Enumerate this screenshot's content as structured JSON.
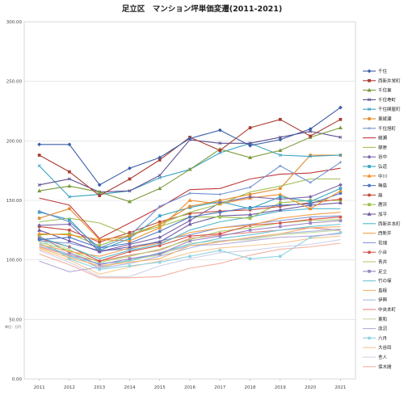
{
  "chart_data": {
    "type": "line",
    "title": "足立区　マンション坪単価変遷(2011-2021)",
    "unit_label": "単位：万円",
    "xlabel": "",
    "ylabel": "",
    "ylim": [
      0,
      300
    ],
    "yticks": [
      "0.00",
      "50.00",
      "100.00",
      "150.00",
      "200.00",
      "250.00",
      "300.00"
    ],
    "x": [
      2011,
      2012,
      2013,
      2014,
      2015,
      2016,
      2017,
      2018,
      2019,
      2020,
      2021
    ],
    "grid": true,
    "legend_position": "right",
    "series": [
      {
        "name": "千住",
        "color": "#3b5ea8",
        "marker": "diamond",
        "values": [
          197,
          197,
          163,
          177,
          186,
          202,
          209,
          196,
          201,
          210,
          228
        ]
      },
      {
        "name": "西新井栄町",
        "color": "#a93c2f",
        "marker": "square",
        "values": [
          188,
          174,
          154,
          168,
          184,
          203,
          192,
          211,
          218,
          204,
          218
        ]
      },
      {
        "name": "千住東",
        "color": "#7a9a3a",
        "marker": "triangle",
        "values": [
          158,
          162,
          157,
          149,
          160,
          176,
          193,
          186,
          192,
          203,
          211
        ]
      },
      {
        "name": "千住寿町",
        "color": "#5a4d8f",
        "marker": "x",
        "values": [
          163,
          168,
          157,
          158,
          171,
          201,
          198,
          198,
          203,
          208,
          203
        ]
      },
      {
        "name": "千住関屋町",
        "color": "#3aa0c0",
        "marker": "x",
        "values": [
          179,
          153,
          155,
          158,
          169,
          176,
          190,
          198,
          188,
          187,
          188
        ]
      },
      {
        "name": "東綾瀬",
        "color": "#e08a2c",
        "marker": "circle",
        "values": [
          135,
          143,
          117,
          120,
          130,
          145,
          150,
          155,
          160,
          188,
          188
        ]
      },
      {
        "name": "千住旭町",
        "color": "#6f8fd0",
        "marker": "plus",
        "values": [
          141,
          132,
          110,
          120,
          145,
          156,
          155,
          161,
          179,
          165,
          182
        ]
      },
      {
        "name": "綾瀬",
        "color": "#c2393a",
        "marker": "none",
        "values": [
          152,
          146,
          118,
          131,
          144,
          159,
          160,
          168,
          172,
          173,
          177
        ]
      },
      {
        "name": "柳原",
        "color": "#a1c157",
        "marker": "none",
        "values": [
          132,
          135,
          131,
          121,
          130,
          140,
          147,
          157,
          162,
          168,
          168
        ]
      },
      {
        "name": "谷中",
        "color": "#7b63a8",
        "marker": "diamond",
        "values": [
          129,
          130,
          107,
          113,
          119,
          133,
          148,
          153,
          151,
          153,
          163
        ]
      },
      {
        "name": "弘道",
        "color": "#39a6c4",
        "marker": "square",
        "values": [
          140,
          134,
          108,
          118,
          137,
          144,
          149,
          143,
          153,
          149,
          160
        ]
      },
      {
        "name": "中川",
        "color": "#f08f2e",
        "marker": "triangle",
        "values": [
          122,
          121,
          117,
          116,
          127,
          150,
          147,
          152,
          155,
          143,
          158
        ]
      },
      {
        "name": "梅島",
        "color": "#4f76c5",
        "marker": "circle",
        "values": [
          117,
          119,
          110,
          114,
          124,
          136,
          140,
          144,
          146,
          147,
          156
        ]
      },
      {
        "name": "扇",
        "color": "#c44b3b",
        "marker": "circle",
        "values": [
          128,
          125,
          115,
          123,
          132,
          139,
          141,
          142,
          145,
          148,
          151
        ]
      },
      {
        "name": "鹿浜",
        "color": "#9ac048",
        "marker": "square",
        "values": [
          121,
          122,
          112,
          121,
          128,
          136,
          136,
          135,
          148,
          150,
          150
        ]
      },
      {
        "name": "加平",
        "color": "#6f5aa3",
        "marker": "triangle",
        "values": [
          125,
          116,
          107,
          111,
          115,
          130,
          137,
          138,
          142,
          146,
          148
        ]
      },
      {
        "name": "西新井本町",
        "color": "#4fb7cf",
        "marker": "none",
        "values": [
          119,
          111,
          101,
          108,
          113,
          125,
          132,
          136,
          141,
          143,
          143
        ]
      },
      {
        "name": "西新井",
        "color": "#f5a14a",
        "marker": "none",
        "values": [
          113,
          107,
          103,
          110,
          114,
          123,
          127,
          129,
          135,
          138,
          140
        ]
      },
      {
        "name": "花畑",
        "color": "#7f96d6",
        "marker": "none",
        "values": [
          116,
          114,
          108,
          109,
          116,
          121,
          127,
          130,
          133,
          136,
          137
        ]
      },
      {
        "name": "小台",
        "color": "#d8554a",
        "marker": "circle",
        "values": [
          118,
          111,
          99,
          107,
          112,
          120,
          122,
          129,
          131,
          134,
          136
        ]
      },
      {
        "name": "青井",
        "color": "#b1ce6d",
        "marker": "none",
        "values": [
          115,
          108,
          98,
          103,
          109,
          117,
          124,
          127,
          131,
          133,
          134
        ]
      },
      {
        "name": "足立",
        "color": "#9b86c4",
        "marker": "square",
        "values": [
          120,
          106,
          96,
          101,
          105,
          116,
          120,
          125,
          128,
          131,
          133
        ]
      },
      {
        "name": "竹の塚",
        "color": "#6cc4d8",
        "marker": "none",
        "values": [
          114,
          103,
          97,
          99,
          106,
          113,
          118,
          121,
          125,
          128,
          130
        ]
      },
      {
        "name": "島根",
        "color": "#f7b46c",
        "marker": "none",
        "values": [
          110,
          102,
          95,
          98,
          101,
          112,
          115,
          119,
          122,
          127,
          128
        ]
      },
      {
        "name": "伊興",
        "color": "#a8b8e2",
        "marker": "none",
        "values": [
          112,
          105,
          93,
          97,
          103,
          110,
          116,
          118,
          122,
          124,
          126
        ]
      },
      {
        "name": "中央本町",
        "color": "#e28a82",
        "marker": "none",
        "values": [
          111,
          104,
          99,
          104,
          108,
          118,
          121,
          123,
          125,
          127,
          125
        ]
      },
      {
        "name": "東和",
        "color": "#c7dba0",
        "marker": "none",
        "values": [
          117,
          109,
          93,
          100,
          104,
          114,
          116,
          117,
          121,
          123,
          125
        ]
      },
      {
        "name": "皿沼",
        "color": "#b7a9d8",
        "marker": "none",
        "values": [
          99,
          90,
          94,
          100,
          105,
          112,
          113,
          116,
          119,
          120,
          122
        ]
      },
      {
        "name": "六月",
        "color": "#8ed3e3",
        "marker": "circle",
        "values": [
          118,
          101,
          92,
          95,
          98,
          103,
          108,
          101,
          103,
          119,
          123
        ]
      },
      {
        "name": "大谷田",
        "color": "#f9c690",
        "marker": "none",
        "values": [
          109,
          100,
          88,
          94,
          99,
          106,
          110,
          112,
          114,
          118,
          120
        ]
      },
      {
        "name": "舎人",
        "color": "#d0d0e8",
        "marker": "none",
        "values": [
          108,
          98,
          86,
          86,
          95,
          101,
          106,
          108,
          111,
          113,
          117
        ]
      },
      {
        "name": "保木間",
        "color": "#f5b0a0",
        "marker": "none",
        "values": [
          105,
          96,
          85,
          85,
          86,
          93,
          97,
          104,
          109,
          111,
          114
        ]
      }
    ]
  }
}
